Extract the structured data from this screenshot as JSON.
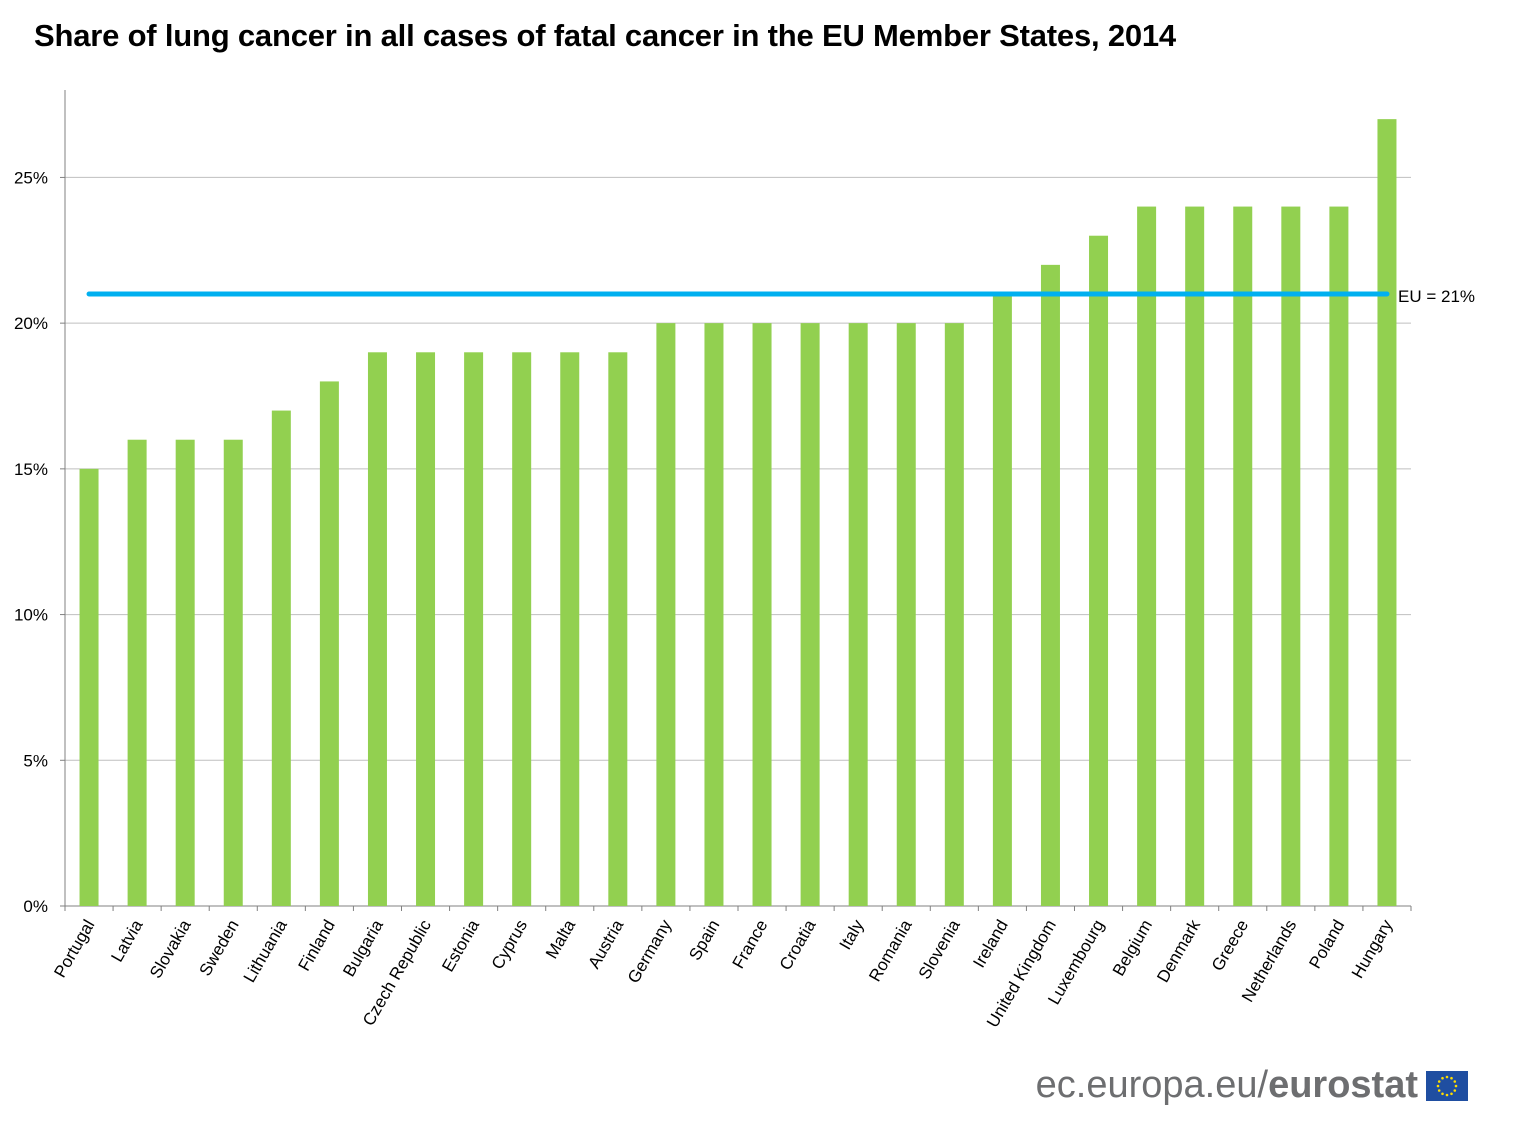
{
  "chart_data": {
    "type": "bar",
    "title": "Share of lung cancer in all cases of fatal cancer in the EU Member States, 2014",
    "categories": [
      "Portugal",
      "Latvia",
      "Slovakia",
      "Sweden",
      "Lithuania",
      "Finland",
      "Bulgaria",
      "Czech Republic",
      "Estonia",
      "Cyprus",
      "Malta",
      "Austria",
      "Germany",
      "Spain",
      "France",
      "Croatia",
      "Italy",
      "Romania",
      "Slovenia",
      "Ireland",
      "United Kingdom",
      "Luxembourg",
      "Belgium",
      "Denmark",
      "Greece",
      "Netherlands",
      "Poland",
      "Hungary"
    ],
    "values": [
      15,
      16,
      16,
      16,
      17,
      18,
      19,
      19,
      19,
      19,
      19,
      19,
      20,
      20,
      20,
      20,
      20,
      20,
      20,
      21,
      22,
      23,
      24,
      24,
      24,
      24,
      24,
      27
    ],
    "ylim": [
      0,
      28
    ],
    "yticks": [
      0,
      5,
      10,
      15,
      20,
      25
    ],
    "ytick_labels": [
      "0%",
      "5%",
      "10%",
      "15%",
      "20%",
      "25%"
    ],
    "grid": true,
    "bar_color": "#92d050",
    "reference_line": {
      "value": 21,
      "label": "EU = 21%",
      "color": "#00b0f0"
    }
  },
  "footer": {
    "prefix": "ec.europa.eu/",
    "brand": "eurostat",
    "flag_icon": "eu-flag-icon"
  }
}
